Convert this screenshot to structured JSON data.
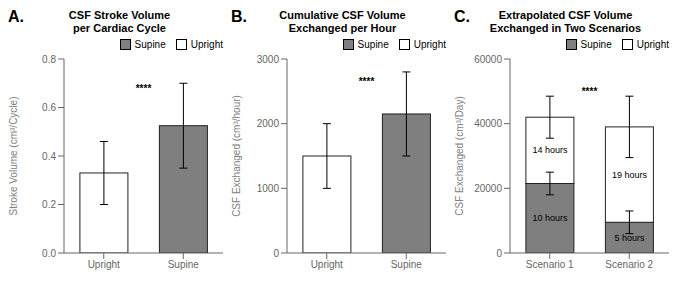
{
  "chart_data": [
    {
      "type": "bar",
      "title": "CSF Stroke Volume\nper Cardiac Cycle",
      "ylabel": "Stroke Volume (cm³/Cycle)",
      "categories": [
        "Upright",
        "Supine"
      ],
      "series": [
        {
          "name": "Supine",
          "color": "#7f7f7f",
          "values": [
            null,
            0.525
          ],
          "errors": [
            null,
            0.175
          ]
        },
        {
          "name": "Upright",
          "color": "white",
          "values": [
            0.33,
            null
          ],
          "errors": [
            0.13,
            null
          ]
        }
      ],
      "ylim": [
        0,
        0.8
      ],
      "yticks": [
        {
          "value": 0,
          "label": "0.0"
        },
        0.2,
        0.4,
        0.6,
        0.8
      ],
      "legend": "upper right",
      "annotations": [
        {
          "text": "A."
        },
        {
          "text": "****",
          "y": 0.68
        }
      ]
    },
    {
      "type": "bar",
      "title": "Cumulative CSF Volume\nExchanged per Hour",
      "ylabel": "CSF Exchanged (cm³/hour)",
      "categories": [
        "Upright",
        "Supine"
      ],
      "series": [
        {
          "name": "Supine",
          "color": "#7f7f7f",
          "values": [
            null,
            2150
          ],
          "errors": [
            null,
            650
          ]
        },
        {
          "name": "Upright",
          "color": "white",
          "values": [
            1500,
            null
          ],
          "errors": [
            500,
            null
          ]
        }
      ],
      "ylim": [
        0,
        3000
      ],
      "yticks": [
        0,
        1000,
        2000,
        3000
      ],
      "legend": "upper right",
      "annotations": [
        {
          "text": "B."
        },
        {
          "text": "****",
          "y": 2650
        }
      ]
    },
    {
      "type": "bar",
      "title": "Extrapolated CSF Volume\nExchanged in Two Scenarios",
      "ylabel": "CSF Exchanged (cm³/Day)",
      "categories": [
        "Scenario 1",
        "Scenario 2"
      ],
      "stacked": true,
      "series": [
        {
          "name": "Supine",
          "color": "#7f7f7f",
          "values": [
            21500,
            9500
          ],
          "value_labels": [
            "10 hours",
            "5 hours"
          ],
          "errors_lower": [
            3500,
            3500
          ],
          "errors_upper": [
            3500,
            3500
          ]
        },
        {
          "name": "Upright",
          "color": "white",
          "values": [
            20500,
            29500
          ],
          "value_labels": [
            "14 hours",
            "19 hours"
          ],
          "errors_lower": [
            6500,
            9500
          ],
          "errors_upper": [
            6500,
            9500
          ]
        }
      ],
      "ylim": [
        0,
        60000
      ],
      "yticks": [
        0,
        20000,
        40000,
        60000
      ],
      "legend": "upper right",
      "annotations": [
        {
          "text": "C."
        },
        {
          "text": "****",
          "y": 50000
        }
      ]
    }
  ]
}
